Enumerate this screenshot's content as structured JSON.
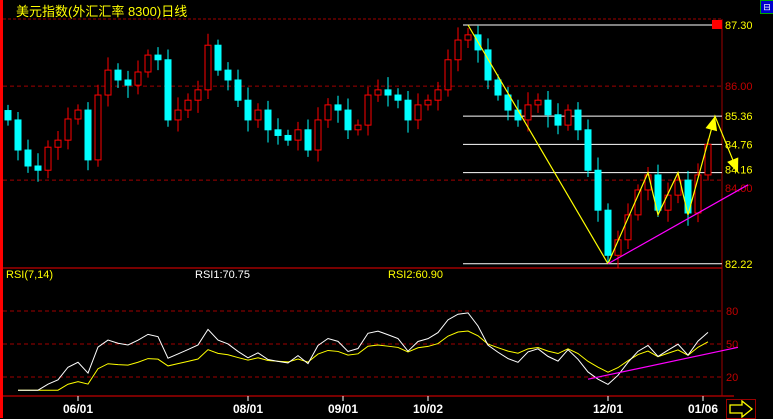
{
  "title": "美元指数(外汇汇率 8300)日线",
  "indicator": {
    "name": "RSI(7,14)",
    "rsi1": "RSI1:70.75",
    "rsi2": "RSI2:60.90"
  },
  "colors": {
    "up": "#ff0000",
    "down": "#00ffff",
    "rsi1": "#ffffff",
    "rsi2": "#ffff00",
    "trend": "#ff00ff",
    "fib": "#ffff00",
    "grid": "#a00000",
    "axis_text": "#ffff00"
  },
  "chart_data": [
    {
      "type": "candlestick",
      "title": "美元指数(外汇汇率 8300)日线",
      "y_range": [
        82.0,
        87.4
      ],
      "grid_ticks": [
        "86.00",
        "84.00"
      ],
      "level_labels": [
        "87.30",
        "85.36",
        "84.76",
        "84.16",
        "82.22"
      ],
      "levels": [
        87.3,
        85.36,
        84.76,
        84.16,
        82.22
      ],
      "x_tick_labels": [
        {
          "label": "06/01",
          "index": 7
        },
        {
          "label": "08/01",
          "index": 24
        },
        {
          "label": "09/01",
          "index": 33.5
        },
        {
          "label": "10/02",
          "index": 42
        },
        {
          "label": "12/01",
          "index": 60
        },
        {
          "label": "01/06",
          "index": 69.5
        }
      ],
      "closes": [
        85.28,
        84.64,
        84.3,
        84.21,
        84.7,
        84.85,
        85.3,
        85.49,
        84.43,
        85.81,
        86.34,
        86.13,
        86.02,
        86.3,
        86.66,
        86.56,
        85.28,
        85.49,
        85.7,
        85.92,
        86.87,
        86.34,
        86.13,
        85.7,
        85.28,
        85.49,
        85.07,
        84.95,
        84.85,
        85.07,
        84.64,
        85.28,
        85.6,
        85.49,
        85.07,
        85.17,
        85.81,
        85.92,
        85.81,
        85.7,
        85.28,
        85.6,
        85.7,
        85.92,
        86.56,
        86.98,
        87.09,
        86.77,
        86.13,
        85.81,
        85.49,
        85.28,
        85.6,
        85.7,
        85.39,
        85.17,
        85.49,
        85.07,
        84.21,
        83.36,
        82.4,
        82.73,
        83.26,
        83.79,
        84.11,
        83.36,
        83.68,
        84.0,
        83.3,
        84.11,
        84.76
      ],
      "overlays": {
        "decline_line": [
          [
            46,
            87.3
          ],
          [
            60,
            82.22
          ]
        ],
        "zigzag_projection": [
          [
            60,
            82.22
          ],
          [
            64,
            84.16
          ],
          [
            65,
            83.26
          ],
          [
            67,
            84.16
          ],
          [
            68,
            83.26
          ],
          [
            70.7,
            85.36
          ],
          [
            73,
            84.16
          ]
        ],
        "support_trend": [
          [
            60,
            82.22
          ],
          [
            74,
            83.9
          ]
        ]
      }
    },
    {
      "type": "line",
      "title": "RSI(7,14)",
      "y_range": [
        0,
        100
      ],
      "y_tick_labels": [
        "80",
        "50",
        "20"
      ],
      "y_ticks": [
        80,
        50,
        20
      ],
      "series": [
        {
          "name": "RSI1",
          "period": 7,
          "last": 70.75
        },
        {
          "name": "RSI2",
          "period": 14,
          "last": 60.9
        }
      ],
      "support_trend": [
        [
          58,
          18
        ],
        [
          73,
          47
        ]
      ]
    }
  ]
}
